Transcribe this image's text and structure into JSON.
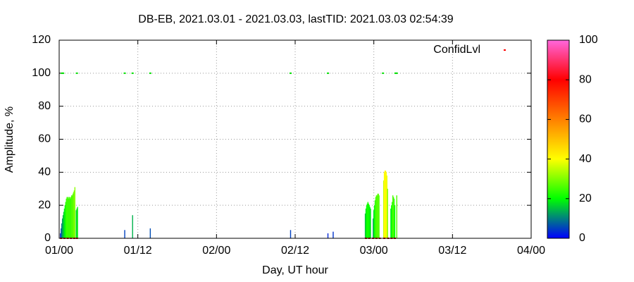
{
  "chart_data": {
    "type": "impulse",
    "title": "DB-EB, 2021.03.01 - 2021.03.03, lastTID: 2021.03.03 02:54:39",
    "x_label": "Day, UT hour",
    "y_label": "Amplitude, %",
    "xlim": [
      0,
      72
    ],
    "xticks": [
      {
        "value": 0,
        "label": "01/00"
      },
      {
        "value": 12,
        "label": "01/12"
      },
      {
        "value": 24,
        "label": "02/00"
      },
      {
        "value": 36,
        "label": "02/12"
      },
      {
        "value": 48,
        "label": "03/00"
      },
      {
        "value": 60,
        "label": "03/12"
      },
      {
        "value": 72,
        "label": "04/00"
      }
    ],
    "ylim": [
      0,
      120
    ],
    "yticks": [
      0,
      20,
      40,
      60,
      80,
      100,
      120
    ],
    "grid": true,
    "cblim": [
      0,
      100
    ],
    "cbticks": [
      0,
      20,
      40,
      60,
      80,
      100
    ],
    "palette": [
      "#0000ff",
      "#00ff00",
      "#ffff00",
      "#ff8000",
      "#ff0000",
      "#ff66dd"
    ],
    "legend": "upper right",
    "series": [
      {
        "x": [
          0.2,
          0.3,
          0.4,
          0.5,
          0.6,
          0.7,
          0.8,
          0.9,
          1.0,
          1.1,
          1.2,
          1.3,
          1.4,
          1.5,
          1.6,
          1.7,
          1.8,
          1.9,
          2.0,
          2.1,
          2.2,
          2.3,
          2.4,
          2.6,
          2.7,
          2.8,
          10.0,
          11.2,
          13.9,
          35.3,
          41.0,
          41.8,
          46.7,
          46.8,
          46.9,
          47.0,
          47.1,
          47.2,
          47.3,
          47.4,
          47.5,
          47.9,
          48.0,
          48.1,
          48.2,
          48.3,
          48.4,
          48.5,
          48.6,
          48.7,
          48.8,
          49.5,
          49.6,
          49.7,
          49.8,
          49.9,
          50.0,
          50.1,
          50.6,
          50.7,
          50.8,
          50.9,
          51.0,
          51.1,
          51.2,
          51.5
        ],
        "values": [
          3,
          6,
          9,
          12,
          14,
          16,
          18,
          20,
          22,
          24,
          25,
          25,
          24,
          25,
          25,
          24,
          25,
          26,
          26,
          27,
          28,
          29,
          31,
          17,
          18,
          19,
          5,
          14,
          6,
          5,
          3,
          4,
          15,
          18,
          20,
          21,
          22,
          21,
          20,
          19,
          18,
          12,
          17,
          20,
          23,
          25,
          26,
          26,
          27,
          27,
          26,
          35,
          40,
          41,
          41,
          40,
          38,
          30,
          18,
          20,
          22,
          26,
          25,
          24,
          20,
          26
        ]
      },
      {
        "name": "ConfidLvl",
        "color": "#ff0000",
        "x": [
          0.4,
          0.6,
          2.7,
          10.0,
          11.2,
          13.9,
          35.3,
          41.0,
          49.4,
          51.3,
          51.5,
          0.3,
          0.8,
          1.3,
          1.8,
          2.3,
          2.7,
          46.8,
          47.3,
          47.9,
          48.4,
          48.9,
          49.6,
          50.2,
          50.7,
          51.2
        ],
        "values": [
          100,
          100,
          100,
          100,
          100,
          100,
          100,
          100,
          100,
          100,
          100,
          0,
          0,
          0,
          0,
          0,
          0,
          0,
          0,
          0,
          0,
          0,
          0,
          0,
          0,
          0
        ],
        "colors": [
          "#00dd00",
          "#00dd00",
          "#00dd00",
          "#00dd00",
          "#00dd00",
          "#00dd00",
          "#00dd00",
          "#00dd00",
          "#00dd00",
          "#00dd00",
          "#00dd00",
          "#cc0000",
          "#cc0000",
          "#cc0000",
          "#cc0000",
          "#cc0000",
          "#cc0000",
          "#cc0000",
          "#cc0000",
          "#cc0000",
          "#cc0000",
          "#cc0000",
          "#cc0000",
          "#cc0000",
          "#cc0000",
          "#cc0000"
        ]
      }
    ]
  }
}
